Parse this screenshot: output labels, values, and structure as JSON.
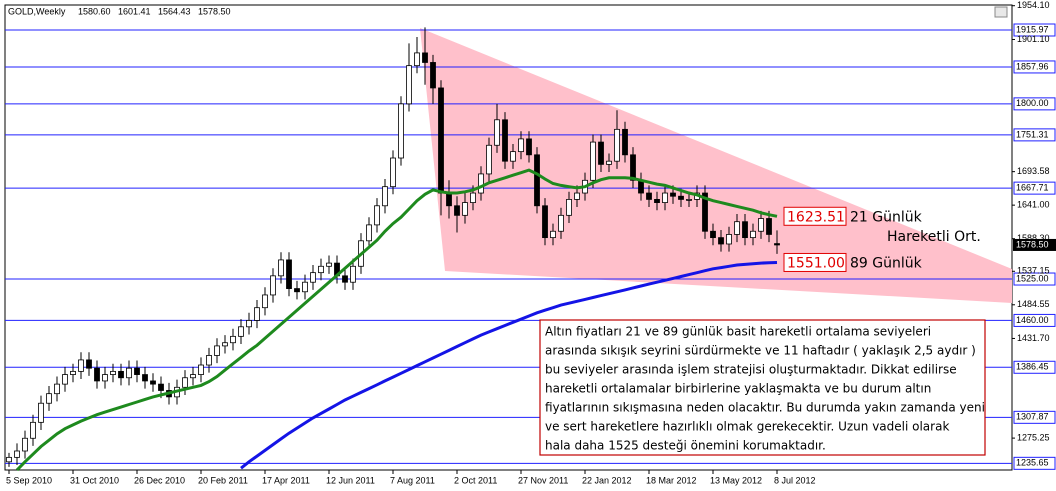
{
  "chart_data": {
    "type": "candlestick",
    "title": "GOLD,Weekly",
    "header_values": [
      "1580.60",
      "1601.41",
      "1564.43",
      "1578.50"
    ],
    "categories": [
      "5 Sep 2010",
      null,
      null,
      null,
      null,
      null,
      null,
      null,
      "31 Oct 2010",
      null,
      null,
      null,
      null,
      null,
      null,
      null,
      "26 Dec 2010",
      null,
      null,
      null,
      null,
      null,
      null,
      null,
      "20 Feb 2011",
      null,
      null,
      null,
      null,
      null,
      null,
      null,
      "17 Apr 2011",
      null,
      null,
      null,
      null,
      null,
      null,
      null,
      "12 Jun 2011",
      null,
      null,
      null,
      null,
      null,
      null,
      null,
      "7 Aug 2011",
      null,
      null,
      null,
      null,
      null,
      null,
      null,
      "2 Oct 2011",
      null,
      null,
      null,
      null,
      null,
      null,
      null,
      "27 Nov 2011",
      null,
      null,
      null,
      null,
      null,
      null,
      null,
      "22 Jan 2012",
      null,
      null,
      null,
      null,
      null,
      null,
      null,
      "18 Mar 2012",
      null,
      null,
      null,
      null,
      null,
      null,
      null,
      "13 May 2012",
      null,
      null,
      null,
      null,
      null,
      null,
      null,
      "8 Jul 2012"
    ],
    "open": [
      1238,
      1245,
      1255,
      1275,
      1300,
      1330,
      1345,
      1360,
      1375,
      1380,
      1398,
      1385,
      1365,
      1375,
      1380,
      1370,
      1385,
      1375,
      1365,
      1360,
      1350,
      1340,
      1355,
      1370,
      1375,
      1390,
      1405,
      1420,
      1425,
      1435,
      1450,
      1460,
      1480,
      1500,
      1530,
      1555,
      1510,
      1505,
      1520,
      1535,
      1545,
      1550,
      1530,
      1520,
      1545,
      1585,
      1610,
      1640,
      1670,
      1715,
      1800,
      1860,
      1880,
      1865,
      1825,
      1660,
      1640,
      1625,
      1645,
      1660,
      1690,
      1735,
      1775,
      1710,
      1725,
      1745,
      1720,
      1640,
      1590,
      1600,
      1625,
      1650,
      1660,
      1680,
      1740,
      1705,
      1710,
      1760,
      1720,
      1680,
      1660,
      1650,
      1645,
      1660,
      1655,
      1650,
      1650,
      1660,
      1600,
      1590,
      1580,
      1595,
      1615,
      1590,
      1600,
      1620,
      1580.6
    ],
    "high": [
      1252,
      1267,
      1287,
      1312,
      1342,
      1357,
      1372,
      1387,
      1392,
      1410,
      1410,
      1397,
      1387,
      1392,
      1392,
      1397,
      1397,
      1387,
      1377,
      1372,
      1362,
      1367,
      1382,
      1387,
      1402,
      1417,
      1432,
      1437,
      1447,
      1462,
      1472,
      1492,
      1512,
      1542,
      1567,
      1567,
      1522,
      1532,
      1547,
      1557,
      1562,
      1562,
      1542,
      1557,
      1597,
      1622,
      1652,
      1682,
      1727,
      1812,
      1895,
      1905,
      1920,
      1877,
      1837,
      1680,
      1655,
      1660,
      1672,
      1702,
      1747,
      1800,
      1787,
      1737,
      1757,
      1757,
      1732,
      1652,
      1612,
      1637,
      1662,
      1672,
      1692,
      1752,
      1752,
      1722,
      1790,
      1772,
      1732,
      1692,
      1672,
      1662,
      1672,
      1672,
      1667,
      1662,
      1672,
      1672,
      1612,
      1602,
      1607,
      1627,
      1627,
      1612,
      1632,
      1632,
      1601.41
    ],
    "low": [
      1230,
      1233,
      1243,
      1263,
      1288,
      1318,
      1333,
      1348,
      1363,
      1368,
      1373,
      1353,
      1353,
      1363,
      1358,
      1358,
      1363,
      1353,
      1348,
      1338,
      1328,
      1328,
      1343,
      1358,
      1363,
      1378,
      1393,
      1408,
      1413,
      1423,
      1438,
      1448,
      1468,
      1488,
      1518,
      1498,
      1493,
      1493,
      1508,
      1523,
      1533,
      1518,
      1508,
      1508,
      1533,
      1573,
      1598,
      1628,
      1658,
      1703,
      1788,
      1848,
      1830,
      1800,
      1625,
      1620,
      1598,
      1612,
      1633,
      1648,
      1678,
      1723,
      1698,
      1698,
      1713,
      1708,
      1628,
      1578,
      1578,
      1588,
      1613,
      1638,
      1648,
      1668,
      1693,
      1693,
      1698,
      1708,
      1668,
      1648,
      1638,
      1633,
      1633,
      1643,
      1638,
      1638,
      1638,
      1588,
      1578,
      1568,
      1568,
      1583,
      1578,
      1578,
      1588,
      1583,
      1564.43
    ],
    "close": [
      1245,
      1255,
      1275,
      1300,
      1330,
      1345,
      1360,
      1375,
      1380,
      1398,
      1385,
      1365,
      1375,
      1380,
      1370,
      1385,
      1375,
      1365,
      1360,
      1350,
      1340,
      1355,
      1370,
      1375,
      1390,
      1405,
      1420,
      1425,
      1435,
      1450,
      1460,
      1480,
      1500,
      1530,
      1555,
      1510,
      1505,
      1520,
      1535,
      1545,
      1550,
      1530,
      1520,
      1545,
      1585,
      1610,
      1640,
      1670,
      1715,
      1800,
      1860,
      1880,
      1865,
      1825,
      1660,
      1640,
      1625,
      1645,
      1660,
      1690,
      1735,
      1775,
      1710,
      1725,
      1745,
      1720,
      1640,
      1590,
      1600,
      1625,
      1650,
      1660,
      1680,
      1740,
      1705,
      1710,
      1760,
      1720,
      1680,
      1660,
      1650,
      1645,
      1660,
      1655,
      1650,
      1650,
      1660,
      1600,
      1590,
      1580,
      1595,
      1615,
      1590,
      1600,
      1620,
      1595,
      1578.5
    ],
    "series": [
      {
        "name": "21 Günlük",
        "color": "#1e8a1e",
        "values": [
          null,
          1225,
          1238,
          1250,
          1262,
          1272,
          1282,
          1290,
          1296,
          1302,
          1307,
          1312,
          1316,
          1320,
          1324,
          1328,
          1332,
          1336,
          1340,
          1343,
          1346,
          1349,
          1352,
          1355,
          1358,
          1364,
          1372,
          1382,
          1392,
          1402,
          1412,
          1421,
          1432,
          1443,
          1454,
          1465,
          1476,
          1487,
          1498,
          1509,
          1520,
          1531,
          1542,
          1553,
          1564,
          1575,
          1586,
          1600,
          1612,
          1622,
          1635,
          1648,
          1658,
          1665,
          1662,
          1660,
          1660,
          1662,
          1665,
          1670,
          1676,
          1680,
          1684,
          1688,
          1692,
          1696,
          1690,
          1682,
          1675,
          1672,
          1670,
          1668,
          1670,
          1676,
          1681,
          1684,
          1684,
          1684,
          1683,
          1680,
          1677,
          1674,
          1672,
          1668,
          1664,
          1660,
          1657,
          1652,
          1648,
          1645,
          1642,
          1639,
          1636,
          1633,
          1629,
          1626,
          1623.51
        ],
        "value_labels": [
          null,
          null,
          null,
          null,
          null,
          null,
          null,
          null,
          null,
          null,
          null,
          null,
          null,
          null,
          null,
          null,
          null,
          null,
          null,
          null,
          null,
          null,
          null,
          null,
          null,
          null,
          null,
          null,
          null,
          null,
          null,
          null,
          null,
          null,
          null,
          null,
          null,
          null,
          null,
          null,
          null,
          null,
          null,
          null,
          null,
          null,
          null,
          null,
          null,
          null,
          null,
          null,
          null,
          null,
          null,
          null,
          null,
          null,
          null,
          null,
          null,
          null,
          null,
          null,
          null,
          null,
          null,
          null,
          null,
          null,
          null,
          null,
          null,
          null,
          null,
          null,
          null,
          null,
          null,
          null,
          null,
          null,
          null,
          null,
          null,
          null,
          null,
          null,
          null,
          null,
          null,
          null,
          null,
          null,
          null,
          null,
          "1623.51"
        ]
      },
      {
        "name": "89 Günlük",
        "color": "#1414e6",
        "values": [
          null,
          null,
          null,
          null,
          null,
          null,
          null,
          null,
          null,
          null,
          null,
          null,
          null,
          null,
          null,
          null,
          null,
          null,
          null,
          null,
          null,
          null,
          null,
          null,
          null,
          null,
          null,
          null,
          null,
          1228,
          1238,
          1247,
          1256,
          1265,
          1274,
          1283,
          1291,
          1299,
          1307,
          1314,
          1321,
          1328,
          1335,
          1341,
          1347,
          1353,
          1359,
          1365,
          1371,
          1377,
          1383,
          1389,
          1395,
          1401,
          1407,
          1413,
          1419,
          1425,
          1431,
          1437,
          1442,
          1447,
          1452,
          1457,
          1462,
          1467,
          1472,
          1476,
          1480,
          1484,
          1487,
          1490,
          1493,
          1496,
          1499,
          1502,
          1505,
          1508,
          1511,
          1514,
          1517,
          1520,
          1523,
          1526,
          1529,
          1532,
          1535,
          1538,
          1541,
          1543,
          1545,
          1547,
          1548,
          1549,
          1550,
          1550.5,
          1551
        ],
        "value_labels": [
          null,
          null,
          null,
          null,
          null,
          null,
          null,
          null,
          null,
          null,
          null,
          null,
          null,
          null,
          null,
          null,
          null,
          null,
          null,
          null,
          null,
          null,
          null,
          null,
          null,
          null,
          null,
          null,
          null,
          null,
          null,
          null,
          null,
          null,
          null,
          null,
          null,
          null,
          null,
          null,
          null,
          null,
          null,
          null,
          null,
          null,
          null,
          null,
          null,
          null,
          null,
          null,
          null,
          null,
          null,
          null,
          null,
          null,
          null,
          null,
          null,
          null,
          null,
          null,
          null,
          null,
          null,
          null,
          null,
          null,
          null,
          null,
          null,
          null,
          null,
          null,
          null,
          null,
          null,
          null,
          null,
          null,
          null,
          null,
          null,
          null,
          null,
          null,
          null,
          null,
          null,
          null,
          null,
          null,
          null,
          null,
          "1551.00"
        ]
      }
    ],
    "ma_caption": "Hareketli Ort.",
    "levels": [
      {
        "value": 1915.97,
        "label": "1915.97"
      },
      {
        "value": 1857.96,
        "label": "1857.96"
      },
      {
        "value": 1800,
        "label": "1800.00"
      },
      {
        "value": 1751.31,
        "label": "1751.31"
      },
      {
        "value": 1667.71,
        "label": "1667.71"
      },
      {
        "value": 1525,
        "label": "1525.00"
      },
      {
        "value": 1460,
        "label": "1460.00"
      },
      {
        "value": 1386.45,
        "label": "1386.45"
      },
      {
        "value": 1307.87,
        "label": "1307.87"
      },
      {
        "value": 1235.65,
        "label": "1235.65"
      }
    ],
    "current_price": {
      "value": 1578.5,
      "label": "1578.50"
    },
    "ylim": [
      1225.17,
      1955.22
    ],
    "yticks": [
      {
        "value": 1954.1,
        "label": "1954.10"
      },
      {
        "value": 1901.1,
        "label": "1901.10"
      },
      {
        "value": 1693.58,
        "label": "1693.58"
      },
      {
        "value": 1641,
        "label": "1641.00"
      },
      {
        "value": 1588.3,
        "label": "1588.30"
      },
      {
        "value": 1537.15,
        "label": "1537.15"
      },
      {
        "value": 1484.55,
        "label": "1484.55"
      },
      {
        "value": 1431.7,
        "label": "1431.70"
      },
      {
        "value": 1275.25,
        "label": "1275.25"
      }
    ],
    "grid": false,
    "annotation": [
      "Altın fiyatları 21 ve 89 günlük basit hareketli ortalama seviyeleri",
      "arasında sıkışık seyrini sürdürmekte ve 11 haftadır ( yaklaşık 2,5 aydır )",
      "bu seviyeler arasında işlem stratejisi oluşturmaktadır.  Dikkat edilirse",
      "hareketli ortalamalar birbirlerine yaklaşmakta ve bu durum altın",
      "fiyatlarının sıkışmasına neden olacaktır. Bu durumda yakın zamanda yeni",
      "ve sert hareketlere hazırlıklı olmak gerekecektir. Uzun vadeli olarak",
      "hala daha 1525 desteği önemini korumaktadır."
    ]
  }
}
